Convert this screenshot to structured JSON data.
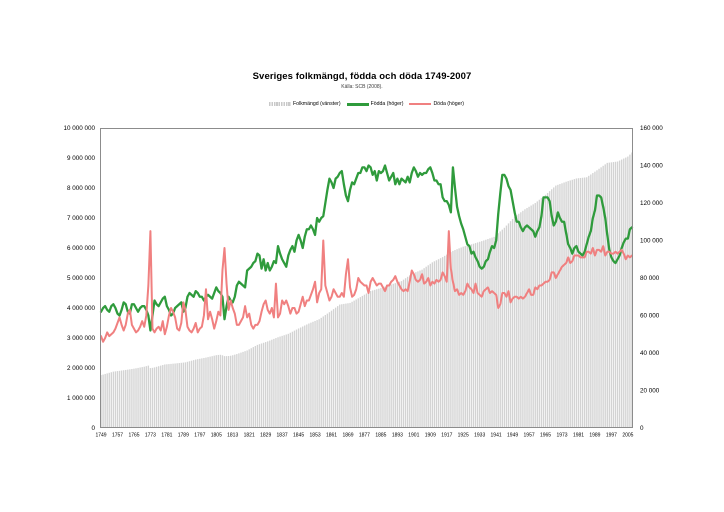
{
  "header": {
    "title": "Sveriges folkmängd, födda och döda 1749-2007",
    "subtitle": "Källa: SCB (2008)."
  },
  "legend": {
    "items": [
      {
        "label": "Folkmängd (vänster)",
        "color": "#c9c9c9",
        "swatch": "bars"
      },
      {
        "label": "Födda (höger)",
        "color": "#2f9b3c",
        "swatch": "thick-line"
      },
      {
        "label": "Döda (höger)",
        "color": "#f08080",
        "swatch": "line"
      }
    ]
  },
  "chart_data": {
    "type": "combo",
    "title": "Sveriges folkmängd, födda och döda 1749-2007",
    "subtitle": "Källa: SCB (2008).",
    "grid": false,
    "legend_position": "top",
    "x_axis": {
      "start": 1749,
      "end": 2007,
      "tick_interval": 8
    },
    "y_axis_left": {
      "min": 0,
      "max": 10000000,
      "tick_interval": 1000000
    },
    "y_axis_right": {
      "min": 0,
      "max": 160000,
      "tick_interval": 20000
    },
    "series": [
      {
        "name": "Folkmängd (vänster)",
        "type": "bar",
        "axis": "left",
        "color": "#d3d3d3",
        "values": [
          1764000,
          1781000,
          1801000,
          1820000,
          1840000,
          1859000,
          1879000,
          1888000,
          1897000,
          1906000,
          1916000,
          1925000,
          1935000,
          1946000,
          1956000,
          1967000,
          1977000,
          1990000,
          2003000,
          2017000,
          2030000,
          2043000,
          2061000,
          2079000,
          1998000,
          2005000,
          2021000,
          2040000,
          2060000,
          2079000,
          2099000,
          2118000,
          2124000,
          2131000,
          2137000,
          2144000,
          2150000,
          2158000,
          2165000,
          2173000,
          2180000,
          2188000,
          2207000,
          2225000,
          2244000,
          2262000,
          2281000,
          2294000,
          2307000,
          2321000,
          2334000,
          2347000,
          2363000,
          2379000,
          2395000,
          2411000,
          2427000,
          2435000,
          2440000,
          2423000,
          2396000,
          2396000,
          2400000,
          2408000,
          2425000,
          2445000,
          2465000,
          2489000,
          2513000,
          2537000,
          2561000,
          2585000,
          2622000,
          2659000,
          2697000,
          2734000,
          2771000,
          2794000,
          2818000,
          2841000,
          2865000,
          2888000,
          2915000,
          2943000,
          2970000,
          2998000,
          3025000,
          3048000,
          3071000,
          3093000,
          3116000,
          3139000,
          3175000,
          3210000,
          3246000,
          3281000,
          3317000,
          3350000,
          3383000,
          3417000,
          3450000,
          3483000,
          3511000,
          3540000,
          3568000,
          3597000,
          3625000,
          3672000,
          3719000,
          3766000,
          3813000,
          3860000,
          3911000,
          3962000,
          4012000,
          4063000,
          4114000,
          4125000,
          4136000,
          4147000,
          4158000,
          4169000,
          4208000,
          4246000,
          4285000,
          4323000,
          4362000,
          4403000,
          4444000,
          4484000,
          4525000,
          4566000,
          4586000,
          4605000,
          4625000,
          4644000,
          4664000,
          4688000,
          4712000,
          4737000,
          4761000,
          4785000,
          4807000,
          4829000,
          4852000,
          4874000,
          4896000,
          4944000,
          4992000,
          5040000,
          5088000,
          5136000,
          5164000,
          5193000,
          5221000,
          5250000,
          5278000,
          5327000,
          5376000,
          5424000,
          5473000,
          5522000,
          5557000,
          5592000,
          5626000,
          5661000,
          5696000,
          5738000,
          5779000,
          5821000,
          5862000,
          5904000,
          5932000,
          5960000,
          5989000,
          6017000,
          6045000,
          6064000,
          6084000,
          6103000,
          6123000,
          6142000,
          6164000,
          6186000,
          6207000,
          6229000,
          6251000,
          6275000,
          6299000,
          6323000,
          6347000,
          6371000,
          6432000,
          6492000,
          6553000,
          6613000,
          6674000,
          6748000,
          6821000,
          6895000,
          6968000,
          7042000,
          7092000,
          7141000,
          7191000,
          7240000,
          7290000,
          7332000,
          7373000,
          7415000,
          7456000,
          7498000,
          7553000,
          7608000,
          7663000,
          7718000,
          7773000,
          7835000,
          7896000,
          7958000,
          8019000,
          8081000,
          8106000,
          8132000,
          8157000,
          8183000,
          8208000,
          8230000,
          8252000,
          8274000,
          8296000,
          8318000,
          8326000,
          8334000,
          8342000,
          8350000,
          8358000,
          8405000,
          8451000,
          8498000,
          8544000,
          8591000,
          8640000,
          8689000,
          8739000,
          8788000,
          8837000,
          8846000,
          8855000,
          8865000,
          8874000,
          8883000,
          8916000,
          8949000,
          8982000,
          9015000,
          9048000,
          9113000,
          9183000
        ]
      },
      {
        "name": "Födda (höger)",
        "type": "line",
        "axis": "right",
        "color": "#2f9b3c",
        "values": [
          62000,
          64000,
          65000,
          63000,
          62000,
          65000,
          66000,
          64000,
          61000,
          60000,
          63000,
          67000,
          66000,
          62000,
          61000,
          66000,
          66000,
          64000,
          62000,
          64000,
          65000,
          65000,
          63000,
          60000,
          52000,
          60000,
          68000,
          66000,
          65000,
          67000,
          69000,
          70000,
          65000,
          63000,
          60000,
          61000,
          64000,
          65000,
          66000,
          67000,
          62000,
          64000,
          70000,
          72000,
          71000,
          70000,
          73000,
          72000,
          70000,
          70000,
          68000,
          70000,
          71000,
          70000,
          69000,
          72000,
          75000,
          73000,
          72000,
          70000,
          58000,
          65000,
          70000,
          68000,
          67000,
          70000,
          76000,
          78000,
          77000,
          76000,
          75000,
          84000,
          85000,
          86000,
          88000,
          89000,
          93000,
          92000,
          85000,
          90000,
          84000,
          88000,
          84000,
          86000,
          89000,
          88000,
          97000,
          93000,
          90000,
          88000,
          86000,
          92000,
          95000,
          97000,
          94000,
          100000,
          103000,
          100000,
          96000,
          102000,
          106000,
          106000,
          108000,
          106000,
          103000,
          112000,
          110000,
          112000,
          113000,
          120000,
          127000,
          133000,
          131000,
          128000,
          133000,
          134000,
          136000,
          137000,
          130000,
          124000,
          121000,
          127000,
          131000,
          130000,
          133000,
          136000,
          136000,
          139000,
          139000,
          137000,
          140000,
          139000,
          135000,
          137000,
          132000,
          137000,
          136000,
          137000,
          140000,
          136000,
          132000,
          134000,
          136000,
          130000,
          133000,
          130000,
          133000,
          132000,
          131000,
          134000,
          131000,
          136000,
          139000,
          137000,
          134000,
          136000,
          135000,
          136000,
          136000,
          138000,
          139000,
          136000,
          132000,
          132000,
          130000,
          130000,
          123000,
          121000,
          121000,
          119000,
          115000,
          139000,
          128000,
          118000,
          113000,
          109000,
          106000,
          102000,
          98000,
          97000,
          93000,
          94000,
          91000,
          89000,
          86000,
          85000,
          86000,
          89000,
          90000,
          94000,
          97000,
          96000,
          100000,
          114000,
          125000,
          135000,
          135000,
          133000,
          129000,
          127000,
          121000,
          115000,
          110000,
          110000,
          107000,
          105000,
          107000,
          108000,
          107000,
          106000,
          105000,
          102000,
          105000,
          107000,
          113000,
          123000,
          123000,
          123000,
          121000,
          113000,
          108000,
          110000,
          115000,
          112000,
          110000,
          110000,
          104000,
          98000,
          96000,
          93000,
          96000,
          97000,
          94000,
          93000,
          92000,
          94000,
          98000,
          102000,
          105000,
          112000,
          116000,
          124000,
          124000,
          123000,
          118000,
          112000,
          103000,
          95000,
          91000,
          89000,
          88000,
          90000,
          92000,
          96000,
          99000,
          101000,
          101000,
          106000,
          107000
        ]
      },
      {
        "name": "Döda (höger)",
        "type": "line",
        "axis": "right",
        "color": "#f08080",
        "values": [
          49000,
          46000,
          48000,
          51000,
          49000,
          50000,
          51000,
          53000,
          56000,
          59000,
          55000,
          52000,
          55000,
          61000,
          63000,
          55000,
          53000,
          51000,
          52000,
          54000,
          57000,
          54000,
          60000,
          76000,
          105000,
          53000,
          51000,
          53000,
          54000,
          52000,
          57000,
          50000,
          54000,
          60000,
          64000,
          62000,
          59000,
          53000,
          52000,
          56000,
          67000,
          63000,
          54000,
          52000,
          51000,
          53000,
          56000,
          51000,
          53000,
          54000,
          60000,
          74000,
          58000,
          62000,
          58000,
          53000,
          57000,
          62000,
          60000,
          84000,
          96000,
          77000,
          63000,
          68000,
          64000,
          61000,
          55000,
          55000,
          57000,
          59000,
          65000,
          59000,
          61000,
          55000,
          53000,
          55000,
          55000,
          57000,
          62000,
          66000,
          68000,
          63000,
          61000,
          64000,
          59000,
          77000,
          59000,
          61000,
          68000,
          66000,
          68000,
          65000,
          61000,
          64000,
          64000,
          61000,
          62000,
          66000,
          70000,
          65000,
          68000,
          68000,
          71000,
          74000,
          78000,
          67000,
          72000,
          74000,
          100000,
          76000,
          72000,
          68000,
          70000,
          74000,
          72000,
          70000,
          70000,
          72000,
          70000,
          82000,
          90000,
          75000,
          70000,
          71000,
          74000,
          80000,
          78000,
          77000,
          76000,
          76000,
          72000,
          78000,
          80000,
          78000,
          76000,
          77000,
          77000,
          75000,
          73000,
          76000,
          76000,
          78000,
          79000,
          81000,
          78000,
          76000,
          74000,
          73000,
          74000,
          73000,
          78000,
          84000,
          82000,
          79000,
          78000,
          79000,
          82000,
          77000,
          78000,
          80000,
          76000,
          78000,
          77000,
          79000,
          78000,
          79000,
          83000,
          81000,
          78000,
          105000,
          85000,
          78000,
          73000,
          74000,
          71000,
          72000,
          71000,
          73000,
          77000,
          75000,
          74000,
          72000,
          77000,
          72000,
          71000,
          70000,
          73000,
          74000,
          75000,
          72000,
          73000,
          72000,
          71000,
          64000,
          66000,
          72000,
          72000,
          70000,
          73000,
          67000,
          69000,
          70000,
          70000,
          69000,
          70000,
          69000,
          70000,
          72000,
          74000,
          71000,
          71000,
          75000,
          74000,
          76000,
          76000,
          77000,
          78000,
          78000,
          79000,
          83000,
          83000,
          80000,
          82000,
          84000,
          86000,
          87000,
          88000,
          91000,
          88000,
          89000,
          92000,
          92000,
          92000,
          91000,
          91000,
          91000,
          94000,
          94000,
          93000,
          96000,
          92000,
          95000,
          95000,
          94000,
          97000,
          92000,
          94000,
          94000,
          93000,
          93000,
          94000,
          93000,
          94000,
          95000,
          93000,
          90000,
          92000,
          91000,
          92000
        ]
      }
    ]
  }
}
